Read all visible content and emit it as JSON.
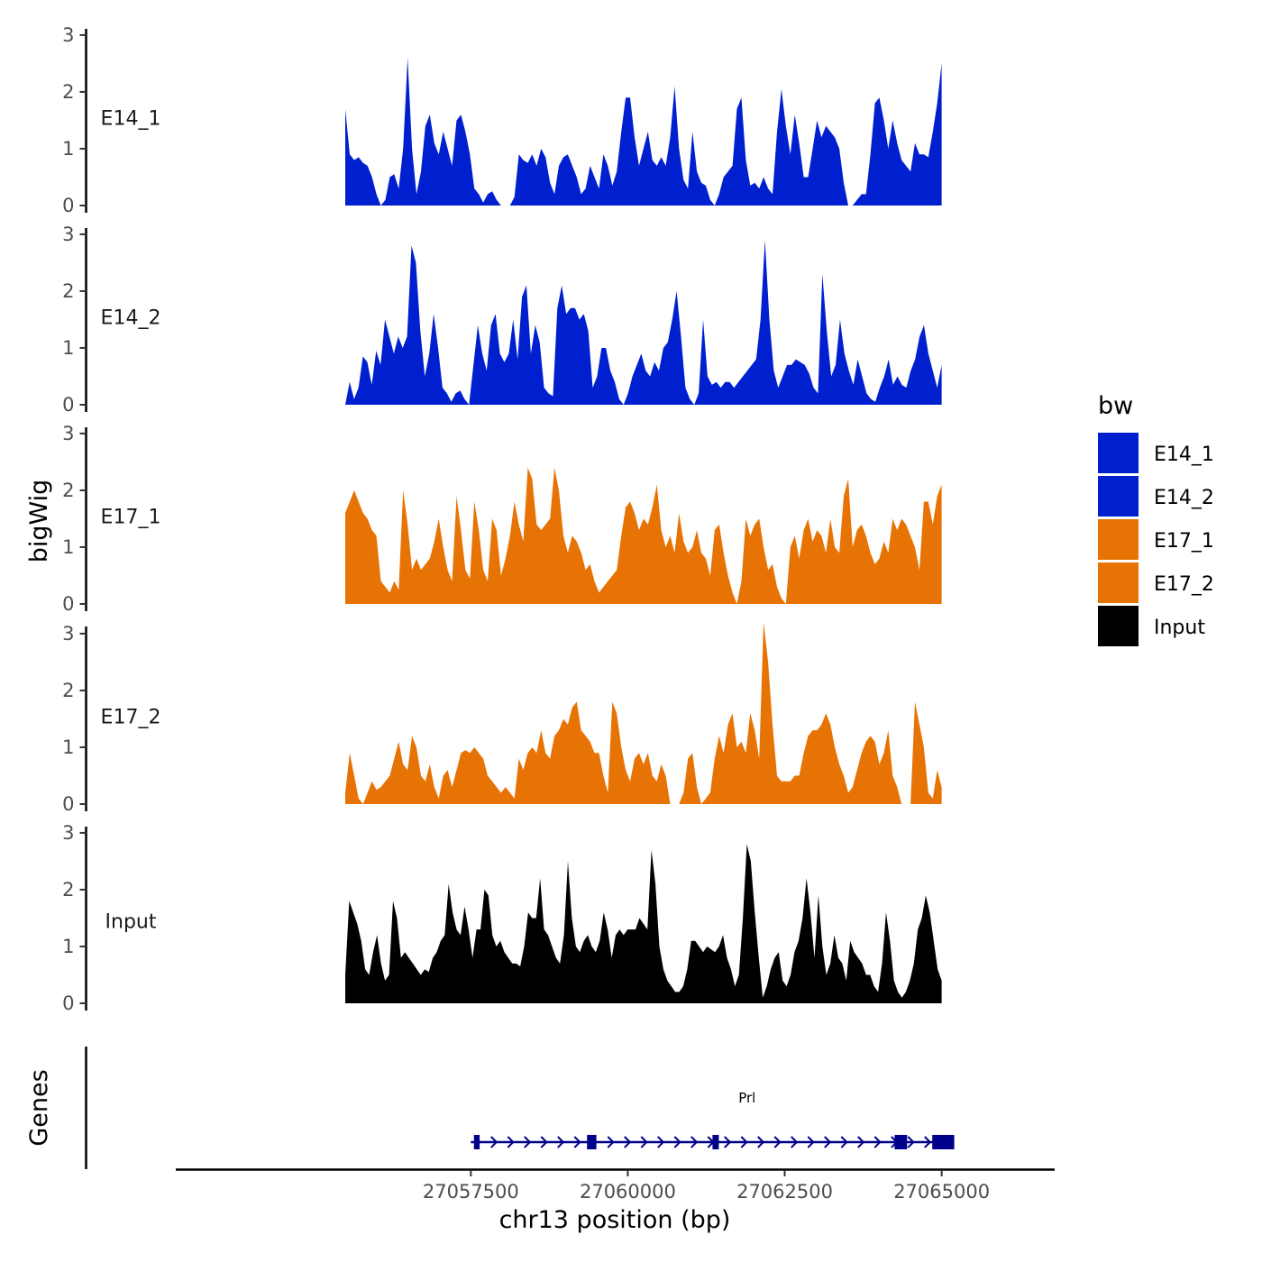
{
  "chart_data": {
    "type": "area",
    "ylabel": "bigWig",
    "xlabel": "chr13 position (bp)",
    "genes_label": "Genes",
    "x_range": [
      27052800,
      27066800
    ],
    "x_ticks": [
      27057500,
      27060000,
      27062500,
      27065000
    ],
    "x_tick_labels": [
      "27057500",
      "27060000",
      "27062500",
      "27065000"
    ],
    "y_range": [
      0,
      3.3
    ],
    "y_ticks": [
      0,
      1,
      2,
      3
    ],
    "y_tick_labels": [
      "0",
      "1",
      "2",
      "3"
    ],
    "series_x_start": 27055500,
    "series_x_end": 27065000,
    "series": [
      {
        "name": "E14_1",
        "color": "#0020D0",
        "values": [
          1.7,
          0.9,
          0.8,
          0.85,
          0.75,
          0.7,
          0.5,
          0.2,
          0,
          0.1,
          0.5,
          0.55,
          0.3,
          1.0,
          2.6,
          1.0,
          0.2,
          0.6,
          1.4,
          1.6,
          1.1,
          0.9,
          1.3,
          1.0,
          0.7,
          1.5,
          1.6,
          1.3,
          0.9,
          0.3,
          0.2,
          0.05,
          0.2,
          0.25,
          0.1,
          0,
          0,
          0,
          0.15,
          0.9,
          0.8,
          0.75,
          0.9,
          0.7,
          1.0,
          0.85,
          0.4,
          0.2,
          0.7,
          0.85,
          0.9,
          0.7,
          0.5,
          0.2,
          0.3,
          0.7,
          0.5,
          0.3,
          0.9,
          0.7,
          0.35,
          0.6,
          1.3,
          1.9,
          1.9,
          1.2,
          0.7,
          1.0,
          1.3,
          0.8,
          0.7,
          0.85,
          0.7,
          1.2,
          2.1,
          1.0,
          0.45,
          0.3,
          1.3,
          0.6,
          0.4,
          0.35,
          0.1,
          0,
          0.2,
          0.5,
          0.6,
          0.7,
          1.7,
          1.9,
          0.8,
          0.35,
          0.4,
          0.3,
          0.5,
          0.3,
          0.2,
          1.3,
          2.05,
          1.4,
          0.9,
          1.6,
          1.1,
          0.5,
          0.5,
          1.0,
          1.5,
          1.2,
          1.4,
          1.3,
          1.2,
          1.0,
          0.4,
          0,
          0,
          0.1,
          0.2,
          0.2,
          0.9,
          1.8,
          1.9,
          1.5,
          1.0,
          1.5,
          1.1,
          0.8,
          0.7,
          0.6,
          1.1,
          0.9,
          0.9,
          0.85,
          1.3,
          1.8,
          2.5
        ]
      },
      {
        "name": "E14_2",
        "color": "#0020D0",
        "values": [
          0,
          0.4,
          0.1,
          0.3,
          0.85,
          0.75,
          0.35,
          0.95,
          0.7,
          1.5,
          1.2,
          0.9,
          1.2,
          1.0,
          1.2,
          2.8,
          2.5,
          1.3,
          0.5,
          0.9,
          1.6,
          1.0,
          0.3,
          0.2,
          0.05,
          0.2,
          0.25,
          0.1,
          0,
          0.7,
          1.4,
          0.9,
          0.6,
          1.4,
          1.6,
          0.9,
          0.75,
          0.9,
          1.5,
          0.8,
          1.9,
          2.1,
          0.9,
          1.4,
          1.1,
          0.3,
          0.2,
          0.15,
          1.7,
          2.1,
          1.6,
          1.7,
          1.7,
          1.5,
          1.6,
          1.3,
          0.3,
          0.5,
          1.0,
          1.0,
          0.6,
          0.4,
          0.1,
          0,
          0.2,
          0.5,
          0.7,
          0.9,
          0.6,
          0.5,
          0.75,
          0.6,
          1.0,
          1.1,
          1.5,
          2.0,
          1.2,
          0.3,
          0.1,
          0,
          0.2,
          1.5,
          0.5,
          0.35,
          0.4,
          0.3,
          0.4,
          0.4,
          0.3,
          0.4,
          0.5,
          0.6,
          0.7,
          0.8,
          1.5,
          2.9,
          1.5,
          0.6,
          0.3,
          0.5,
          0.7,
          0.7,
          0.8,
          0.75,
          0.7,
          0.55,
          0.3,
          0.2,
          2.3,
          1.3,
          0.5,
          0.7,
          1.5,
          0.9,
          0.6,
          0.35,
          0.8,
          0.5,
          0.2,
          0.1,
          0.05,
          0.3,
          0.5,
          0.8,
          0.35,
          0.5,
          0.35,
          0.3,
          0.6,
          0.8,
          1.2,
          1.4,
          0.9,
          0.6,
          0.3,
          0.7
        ]
      },
      {
        "name": "E17_1",
        "color": "#E87305",
        "values": [
          1.6,
          1.8,
          2.0,
          1.8,
          1.6,
          1.5,
          1.3,
          1.2,
          0.4,
          0.3,
          0.2,
          0.4,
          0.25,
          2.0,
          1.4,
          0.6,
          0.8,
          0.6,
          0.7,
          0.8,
          1.1,
          1.5,
          1.0,
          0.6,
          0.4,
          1.9,
          1.3,
          0.6,
          0.45,
          1.8,
          1.3,
          0.6,
          0.4,
          1.5,
          1.3,
          0.5,
          0.8,
          1.2,
          1.8,
          1.4,
          1.1,
          2.4,
          2.2,
          1.4,
          1.3,
          1.4,
          1.5,
          2.4,
          2.0,
          1.2,
          0.9,
          1.2,
          1.1,
          0.9,
          0.6,
          0.7,
          0.4,
          0.2,
          0.3,
          0.4,
          0.5,
          0.6,
          1.2,
          1.7,
          1.8,
          1.6,
          1.3,
          1.5,
          1.4,
          1.7,
          2.1,
          1.3,
          1.0,
          1.2,
          0.9,
          1.6,
          1.1,
          0.9,
          1.0,
          1.3,
          0.9,
          0.8,
          0.5,
          1.3,
          1.4,
          0.9,
          0.5,
          0.2,
          0,
          0.4,
          1.5,
          1.2,
          1.4,
          1.5,
          1.0,
          0.6,
          0.7,
          0.3,
          0.1,
          0,
          1.0,
          1.2,
          0.8,
          1.3,
          1.5,
          1.1,
          1.3,
          1.2,
          0.9,
          1.5,
          1.0,
          0.9,
          1.9,
          2.2,
          1.0,
          1.3,
          1.4,
          1.2,
          0.9,
          0.7,
          0.8,
          1.1,
          0.9,
          1.5,
          1.3,
          1.5,
          1.4,
          1.2,
          1.0,
          0.6,
          1.8,
          1.8,
          1.4,
          1.9,
          2.1
        ]
      },
      {
        "name": "E17_2",
        "color": "#E87305",
        "values": [
          0.2,
          0.9,
          0.5,
          0.1,
          0,
          0.2,
          0.4,
          0.25,
          0.3,
          0.4,
          0.5,
          0.8,
          1.1,
          0.7,
          0.6,
          1.2,
          1.0,
          0.5,
          0.4,
          0.7,
          0.3,
          0.1,
          0.5,
          0.6,
          0.3,
          0.6,
          0.9,
          0.95,
          0.9,
          1.0,
          0.9,
          0.8,
          0.5,
          0.4,
          0.3,
          0.2,
          0.3,
          0.2,
          0.1,
          0.8,
          0.6,
          0.9,
          1.0,
          0.9,
          1.3,
          0.9,
          0.8,
          1.2,
          1.3,
          1.5,
          1.4,
          1.7,
          1.8,
          1.3,
          1.2,
          1.1,
          0.9,
          0.9,
          0.5,
          0.2,
          1.8,
          1.6,
          1.0,
          0.6,
          0.4,
          0.8,
          0.9,
          0.7,
          0.9,
          0.5,
          0.4,
          0.7,
          0.5,
          0,
          0,
          0,
          0.2,
          0.8,
          0.9,
          0.3,
          0,
          0.1,
          0.2,
          0.8,
          1.2,
          0.9,
          1.4,
          1.6,
          1.0,
          1.1,
          0.9,
          1.6,
          1.3,
          0.8,
          3.2,
          2.5,
          1.4,
          0.5,
          0.4,
          0.4,
          0.4,
          0.5,
          0.5,
          0.9,
          1.2,
          1.3,
          1.3,
          1.4,
          1.6,
          1.4,
          1.0,
          0.7,
          0.5,
          0.2,
          0.3,
          0.6,
          0.9,
          1.1,
          1.2,
          1.1,
          0.7,
          0.9,
          1.3,
          0.5,
          0.3,
          0,
          0,
          0,
          1.8,
          1.4,
          1.0,
          0.2,
          0.1,
          0.6,
          0.3
        ]
      },
      {
        "name": "Input",
        "color": "#000000",
        "values": [
          0.5,
          1.8,
          1.6,
          1.4,
          1.1,
          0.6,
          0.5,
          0.9,
          1.2,
          0.7,
          0.4,
          0.5,
          1.8,
          1.5,
          0.8,
          0.9,
          0.8,
          0.7,
          0.6,
          0.5,
          0.6,
          0.55,
          0.8,
          0.9,
          1.1,
          1.2,
          2.1,
          1.6,
          1.3,
          1.2,
          1.7,
          1.3,
          0.8,
          1.3,
          1.3,
          2.0,
          1.9,
          1.2,
          1.0,
          1.1,
          0.9,
          0.8,
          0.7,
          0.7,
          0.65,
          1.0,
          1.6,
          1.5,
          1.5,
          2.2,
          1.3,
          1.2,
          1.0,
          0.8,
          0.7,
          1.2,
          2.5,
          1.5,
          1.0,
          0.9,
          1.1,
          1.2,
          1.0,
          0.9,
          1.1,
          1.6,
          1.3,
          0.8,
          1.2,
          1.3,
          1.2,
          1.3,
          1.3,
          1.3,
          1.5,
          1.4,
          1.3,
          2.7,
          2.1,
          1.0,
          0.6,
          0.4,
          0.3,
          0.2,
          0.2,
          0.3,
          0.6,
          1.1,
          1.1,
          1.0,
          0.9,
          1.0,
          0.95,
          0.9,
          1.0,
          1.2,
          0.8,
          0.6,
          0.3,
          0.5,
          1.5,
          2.8,
          2.5,
          1.6,
          0.8,
          0.1,
          0.3,
          0.6,
          0.8,
          0.9,
          0.4,
          0.3,
          0.5,
          0.9,
          1.1,
          1.5,
          2.2,
          1.6,
          0.8,
          1.9,
          1.0,
          0.5,
          0.7,
          1.2,
          0.8,
          0.7,
          0.4,
          1.1,
          0.9,
          0.8,
          0.7,
          0.5,
          0.5,
          0.3,
          0.2,
          0.7,
          1.6,
          1.1,
          0.4,
          0.2,
          0.1,
          0.2,
          0.4,
          0.7,
          1.3,
          1.5,
          1.9,
          1.6,
          1.1,
          0.6,
          0.4
        ]
      }
    ],
    "legend": {
      "title": "bw",
      "position": "right",
      "entries": [
        {
          "label": "E14_1",
          "color": "#0020D0"
        },
        {
          "label": "E14_2",
          "color": "#0020D0"
        },
        {
          "label": "E17_1",
          "color": "#E87305"
        },
        {
          "label": "E17_2",
          "color": "#E87305"
        },
        {
          "label": "Input",
          "color": "#000000"
        }
      ]
    },
    "gene": {
      "name": "Prl",
      "color": "#00008B",
      "start": 27057500,
      "end": 27065200,
      "exons": [
        [
          27057550,
          27057640
        ],
        [
          27059350,
          27059500
        ],
        [
          27061350,
          27061450
        ],
        [
          27064250,
          27064450
        ],
        [
          27064850,
          27065200
        ]
      ]
    }
  }
}
